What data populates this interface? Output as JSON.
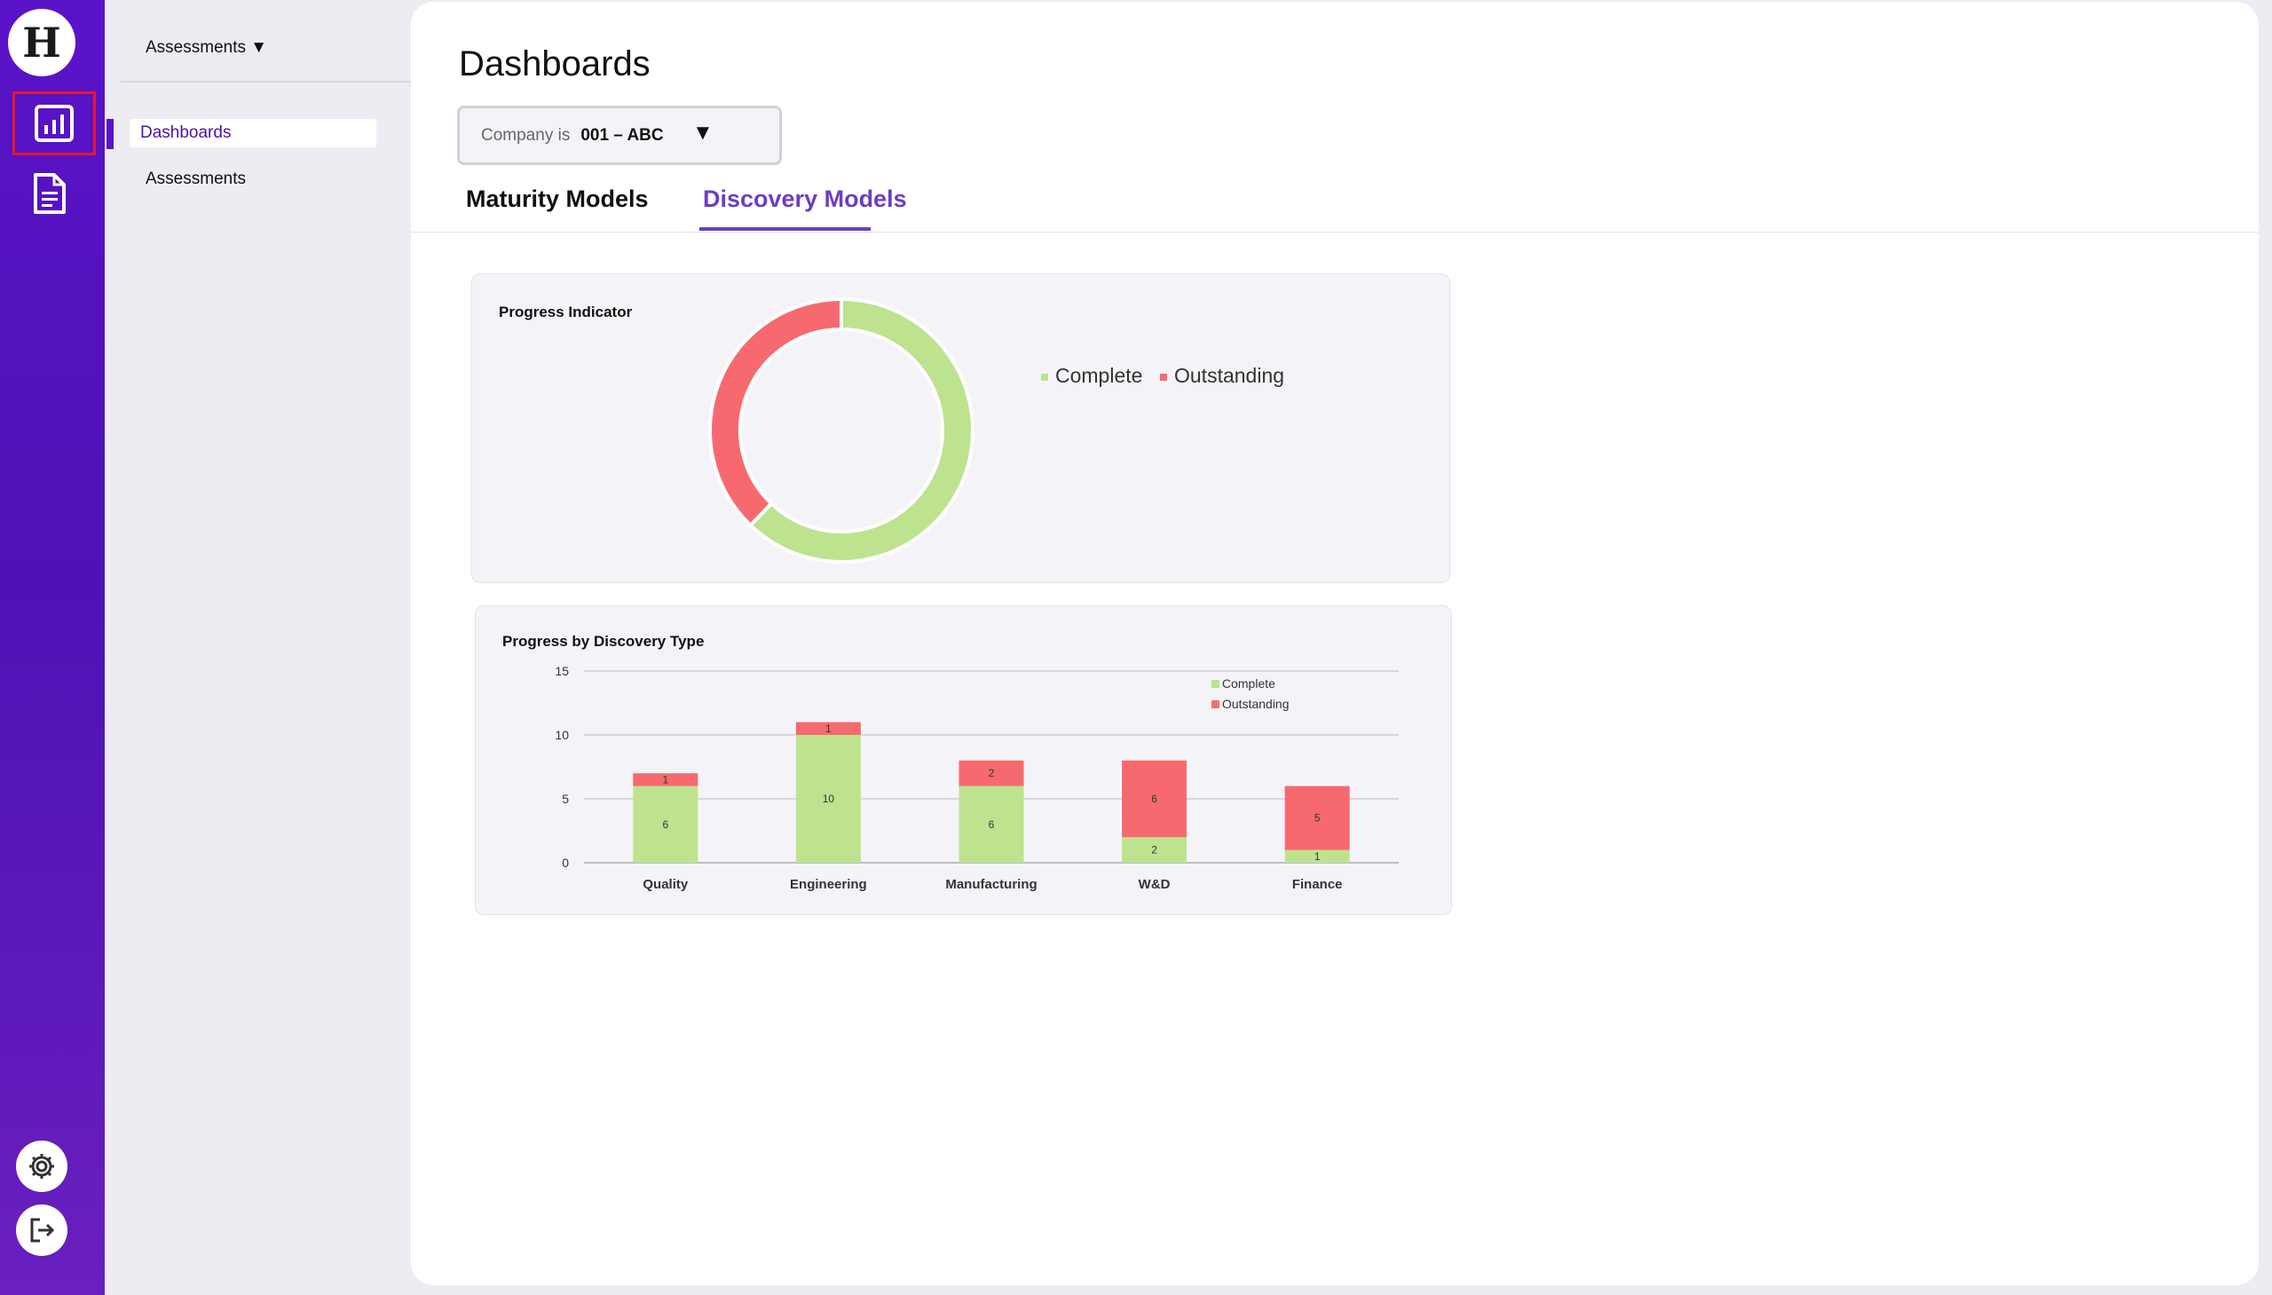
{
  "app": {
    "logo_letter": "H"
  },
  "rail": {
    "items": [
      {
        "name": "dashboards",
        "icon": "bar-chart-icon",
        "active": true
      },
      {
        "name": "documents",
        "icon": "document-icon"
      }
    ],
    "bottom": [
      {
        "name": "settings",
        "icon": "gear-icon"
      },
      {
        "name": "logout",
        "icon": "logout-icon"
      }
    ]
  },
  "subnav": {
    "header": "Assessments ▼",
    "items": [
      {
        "label": "Dashboards",
        "active": true
      },
      {
        "label": "Assessments",
        "active": false
      }
    ]
  },
  "main": {
    "title": "Dashboards",
    "filter": {
      "label": "Company  is",
      "value": "001 – ABC",
      "arrow": "▼"
    },
    "tabs": [
      {
        "label": "Maturity Models",
        "active": false
      },
      {
        "label": "Discovery Models",
        "active": true
      }
    ]
  },
  "colors": {
    "complete": "#bde38f",
    "outstanding": "#f66a6f",
    "accent": "#6d3ec2",
    "rail": "#5b13c9"
  },
  "chart_data": [
    {
      "type": "pie",
      "title": "Progress Indicator",
      "donut": true,
      "labels": [
        "Complete",
        "Outstanding"
      ],
      "values": [
        23,
        14
      ],
      "legend": "right"
    },
    {
      "type": "bar",
      "stacked": true,
      "title": "Progress by Discovery Type",
      "categories": [
        "Quality",
        "Engineering",
        "Manufacturing",
        "W&D",
        "Finance"
      ],
      "series": [
        {
          "name": "Complete",
          "values": [
            6,
            10,
            6,
            2,
            1
          ]
        },
        {
          "name": "Outstanding",
          "values": [
            1,
            1,
            2,
            6,
            5
          ]
        }
      ],
      "ylim": [
        0,
        15
      ],
      "yticks": [
        0,
        5,
        10,
        15
      ],
      "grid": true,
      "legend": "top-right"
    }
  ]
}
